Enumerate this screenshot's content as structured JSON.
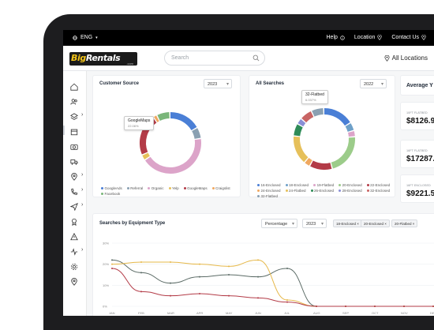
{
  "topbar": {
    "language": "ENG",
    "links": [
      {
        "label": "Help",
        "icon": "info-icon"
      },
      {
        "label": "Location",
        "icon": "location-pin-icon"
      },
      {
        "label": "Contact Us",
        "icon": "location-pin-icon"
      }
    ]
  },
  "header": {
    "logo_text": "BigRentals",
    "logo_sub": ".com",
    "search_placeholder": "Search",
    "all_locations": "All Locations"
  },
  "sidebar": {
    "items": [
      {
        "icon": "home-icon"
      },
      {
        "icon": "users-icon"
      },
      {
        "icon": "layers-icon",
        "chevron": true
      },
      {
        "icon": "calendar-icon",
        "active": true
      },
      {
        "icon": "camera-icon"
      },
      {
        "icon": "truck-icon"
      },
      {
        "icon": "map-pin-icon",
        "chevron": true
      },
      {
        "icon": "phone-icon",
        "chevron": true
      },
      {
        "icon": "send-icon",
        "chevron": true
      },
      {
        "icon": "award-icon"
      },
      {
        "icon": "alert-icon"
      },
      {
        "icon": "activity-icon",
        "chevron": true
      },
      {
        "icon": "settings-icon"
      },
      {
        "icon": "location-icon"
      }
    ]
  },
  "customer_source": {
    "title": "Customer Source",
    "year": "2023",
    "tooltip_label": "GoogleMaps",
    "tooltip_value": "22.06%",
    "legend": [
      "GoogleAds",
      "Referral",
      "Organic",
      "Yelp",
      "GoogleMaps",
      "Craigslist",
      "Facebook"
    ],
    "legend_colors": [
      "#4a7fd6",
      "#8aa0b2",
      "#dca4c9",
      "#e6c05a",
      "#b33b47",
      "#f0a860",
      "#7ab67a"
    ],
    "chart_data": {
      "type": "pie",
      "categories": [
        "GoogleAds",
        "Referral",
        "Organic",
        "Yelp",
        "GoogleMaps",
        "Craigslist",
        "Facebook"
      ],
      "values": [
        17,
        6,
        43,
        3,
        22.06,
        2,
        7
      ]
    }
  },
  "all_searches": {
    "title": "All Searches",
    "year": "2022",
    "tooltip_label": "32-Flatbed",
    "tooltip_value": "6.037%",
    "legend": [
      "16-Enclosed",
      "18-Enclosed",
      "19-Flatbed",
      "20-Enclosed",
      "22-Enclosed",
      "24-Enclosed",
      "24-Flatbed",
      "26-Enclosed",
      "28-Enclosed",
      "32-Enclosed",
      "32-Flatbed"
    ],
    "legend_colors": [
      "#4a7fd6",
      "#6ea0c8",
      "#dca4c9",
      "#9ccc8a",
      "#b33b47",
      "#f0a860",
      "#e6c05a",
      "#2e8b57",
      "#8a8fd6",
      "#c86464",
      "#8aa0b2"
    ],
    "chart_data": {
      "type": "pie",
      "categories": [
        "16-Enclosed",
        "18-Enclosed",
        "19-Flatbed",
        "20-Enclosed",
        "22-Enclosed",
        "24-Enclosed",
        "24-Flatbed",
        "26-Enclosed",
        "28-Enclosed",
        "32-Enclosed",
        "32-Flatbed"
      ],
      "values": [
        15,
        4,
        3,
        20,
        11,
        3,
        14,
        6,
        3,
        6,
        6.037
      ]
    }
  },
  "average": {
    "title": "Average Y",
    "stats": [
      {
        "label": "10FT FLATBED",
        "value": "$8126.9"
      },
      {
        "label": "16FT FLATBED",
        "value": "$17287."
      },
      {
        "label": "16FT ENCLOSED",
        "value": "$9221.5"
      }
    ]
  },
  "searches_by_type": {
    "title": "Searches by Equipment Type",
    "mode": "Percentage",
    "year": "2023",
    "tags": [
      "18-Enclosed",
      "20-Enclosed",
      "20-Flatbed"
    ],
    "remove_icon": "×",
    "chart_data": {
      "type": "line",
      "categories": [
        "JAN",
        "FEB",
        "MAR",
        "APR",
        "MAY",
        "JUN",
        "JUL",
        "AUG",
        "SEP",
        "OCT",
        "NOV",
        "DEC"
      ],
      "y_ticks": [
        "30%",
        "20%",
        "10%",
        "0%"
      ],
      "ylim": [
        0,
        30
      ],
      "series": [
        {
          "color": "#5b6b66",
          "values": [
            22,
            16,
            11,
            14,
            15,
            14,
            18,
            0,
            0,
            0,
            0,
            0
          ]
        },
        {
          "color": "#e6b84a",
          "values": [
            20,
            21,
            21,
            20,
            19,
            22,
            3,
            0,
            0,
            0,
            0,
            0
          ]
        },
        {
          "color": "#b33b47",
          "values": [
            18,
            7,
            5,
            6,
            5,
            4,
            2,
            0,
            0,
            0,
            0,
            0
          ]
        }
      ]
    }
  }
}
